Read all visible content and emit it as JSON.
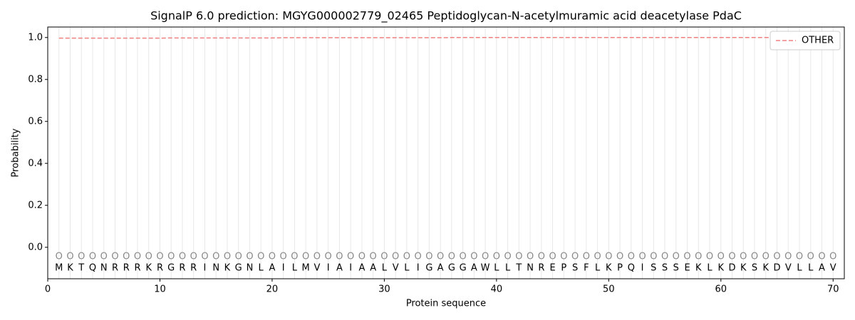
{
  "chart_data": {
    "type": "line",
    "title": "SignalP 6.0 prediction: MGYG000002779_02465 Peptidoglycan-N-acetylmuramic acid deacetylase PdaC",
    "x_label": "Protein sequence",
    "y_label": "Probability",
    "x": [
      1,
      2,
      3,
      4,
      5,
      6,
      7,
      8,
      9,
      10,
      11,
      12,
      13,
      14,
      15,
      16,
      17,
      18,
      19,
      20,
      21,
      22,
      23,
      24,
      25,
      26,
      27,
      28,
      29,
      30,
      31,
      32,
      33,
      34,
      35,
      36,
      37,
      38,
      39,
      40,
      41,
      42,
      43,
      44,
      45,
      46,
      47,
      48,
      49,
      50,
      51,
      52,
      53,
      54,
      55,
      56,
      57,
      58,
      59,
      60,
      61,
      62,
      63,
      64,
      65,
      66,
      67,
      68,
      69,
      70
    ],
    "sequence": [
      "M",
      "K",
      "T",
      "Q",
      "N",
      "R",
      "R",
      "R",
      "K",
      "R",
      "G",
      "R",
      "R",
      "I",
      "N",
      "K",
      "G",
      "N",
      "L",
      "A",
      "I",
      "L",
      "M",
      "V",
      "I",
      "A",
      "I",
      "A",
      "A",
      "L",
      "V",
      "L",
      "I",
      "G",
      "A",
      "G",
      "G",
      "A",
      "W",
      "L",
      "L",
      "T",
      "N",
      "R",
      "E",
      "P",
      "S",
      "F",
      "L",
      "K",
      "P",
      "Q",
      "I",
      "S",
      "S",
      "S",
      "E",
      "K",
      "L",
      "K",
      "D",
      "K",
      "S",
      "K",
      "D",
      "V",
      "L",
      "L",
      "A",
      "V"
    ],
    "region_labels": [
      "O",
      "O",
      "O",
      "O",
      "O",
      "O",
      "O",
      "O",
      "O",
      "O",
      "O",
      "O",
      "O",
      "O",
      "O",
      "O",
      "O",
      "O",
      "O",
      "O",
      "O",
      "O",
      "O",
      "O",
      "O",
      "O",
      "O",
      "O",
      "O",
      "O",
      "O",
      "O",
      "O",
      "O",
      "O",
      "O",
      "O",
      "O",
      "O",
      "O",
      "O",
      "O",
      "O",
      "O",
      "O",
      "O",
      "O",
      "O",
      "O",
      "O",
      "O",
      "O",
      "O",
      "O",
      "O",
      "O",
      "O",
      "O",
      "O",
      "O",
      "O",
      "O",
      "O",
      "O",
      "O",
      "O",
      "O",
      "O",
      "O",
      "O"
    ],
    "series": [
      {
        "name": "OTHER",
        "color": "#f08080",
        "dash": true,
        "values": [
          0.997,
          0.997,
          0.997,
          0.997,
          0.997,
          0.997,
          0.997,
          0.997,
          0.997,
          0.997,
          0.998,
          0.998,
          0.998,
          0.998,
          0.998,
          0.998,
          0.998,
          0.998,
          0.998,
          0.998,
          0.999,
          0.999,
          0.999,
          0.999,
          0.999,
          0.999,
          0.999,
          0.999,
          0.999,
          0.999,
          0.999,
          0.999,
          0.999,
          0.999,
          0.999,
          1.0,
          1.0,
          1.0,
          1.0,
          1.0,
          1.0,
          1.0,
          1.0,
          1.0,
          1.0,
          1.0,
          1.0,
          1.0,
          1.0,
          1.0,
          1.0,
          1.0,
          1.0,
          1.0,
          1.0,
          1.0,
          1.0,
          1.0,
          1.0,
          1.0,
          1.0,
          1.0,
          1.0,
          1.0,
          1.0,
          1.0,
          1.0,
          1.0,
          1.0,
          1.0
        ]
      }
    ],
    "xlim": [
      0,
      71
    ],
    "ylim": [
      -0.15,
      1.05
    ],
    "xticks": [
      0,
      10,
      20,
      30,
      40,
      50,
      60,
      70
    ],
    "yticks": [
      {
        "value": 0.0,
        "label": "0.0"
      },
      0.2,
      0.4,
      0.6,
      0.8,
      {
        "value": 1.0,
        "label": "1.0"
      }
    ],
    "legend": "upper right"
  }
}
